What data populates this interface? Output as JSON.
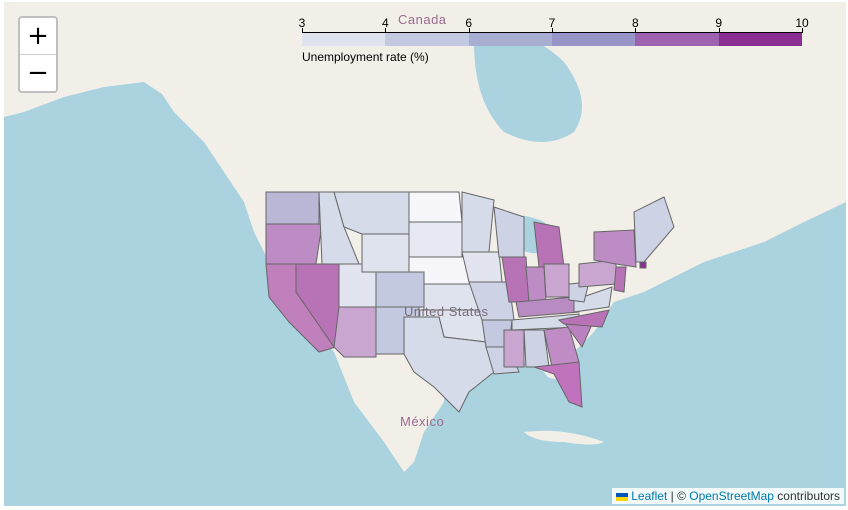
{
  "map": {
    "country_labels": {
      "canada": "Canada",
      "usa": "United States",
      "mexico": "México"
    }
  },
  "zoom": {
    "in_label": "+",
    "out_label": "−"
  },
  "legend": {
    "title": "Unemployment rate (%)",
    "ticks": [
      "3",
      "4",
      "6",
      "7",
      "8",
      "9",
      "10"
    ],
    "colors": [
      "#f7f7fb",
      "#dfe3ee",
      "#c3c9e0",
      "#a8aed2",
      "#9896c8",
      "#9d63b0",
      "#8a2e92"
    ]
  },
  "attribution": {
    "leaflet": "Leaflet",
    "separator": " | © ",
    "osm": "OpenStreetMap",
    "suffix": " contributors"
  },
  "colors": {
    "water": "#aad3df",
    "land": "#f2efe9",
    "border": "#666"
  }
}
